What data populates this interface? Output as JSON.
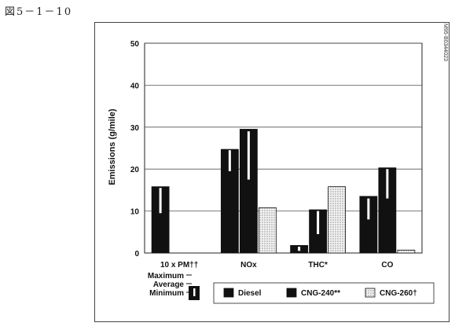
{
  "figure_label": "図5－1－10",
  "side_code": "M95-B0344023",
  "chart_data": {
    "type": "bar",
    "ylabel": "Emissions (g/mile)",
    "ylim": [
      0,
      50
    ],
    "yticks": [
      0,
      10,
      20,
      30,
      40,
      50
    ],
    "categories": [
      "10 x PM††",
      "NOx",
      "THC*",
      "CO"
    ],
    "series": [
      {
        "name": "Diesel",
        "pattern": "solid",
        "values": [
          15.8,
          24.7,
          1.8,
          13.5
        ],
        "averages": [
          15.5,
          24.5,
          1.5,
          13.0
        ],
        "minimums": [
          9.5,
          19.5,
          0.5,
          8.0
        ]
      },
      {
        "name": "CNG-240**",
        "pattern": "solid",
        "values": [
          null,
          29.5,
          10.3,
          20.3
        ],
        "averages": [
          null,
          29.0,
          10.0,
          20.0
        ],
        "minimums": [
          null,
          17.5,
          4.5,
          13.0
        ]
      },
      {
        "name": "CNG-260†",
        "pattern": "dotted",
        "values": [
          null,
          10.8,
          15.8,
          0.7
        ],
        "averages": [
          null,
          10.5,
          15.5,
          0.5
        ],
        "minimums": [
          null,
          0.5,
          2.5,
          0.2
        ]
      }
    ],
    "range_key": {
      "maximum_label": "Maximum",
      "average_label": "Average",
      "minimum_label": "Minimum"
    },
    "colors": {
      "bar": "#111111",
      "grid": "#555555",
      "dotted_bg": "#f2f2f2"
    }
  }
}
